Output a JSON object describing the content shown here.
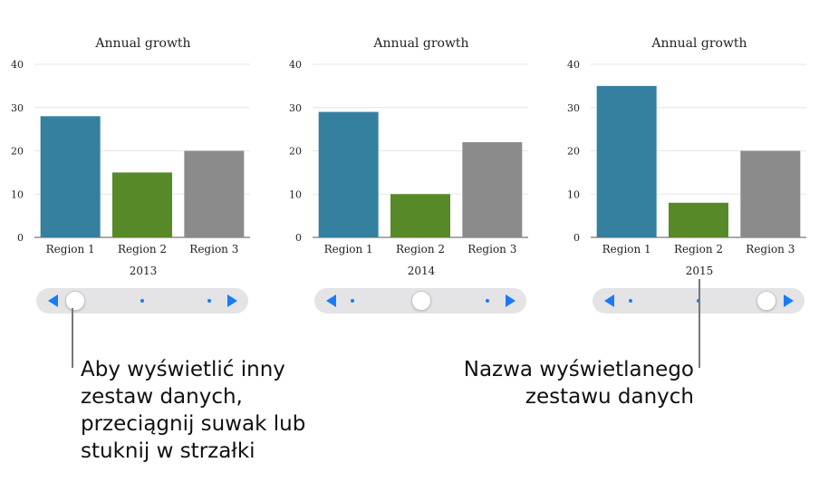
{
  "chart_data": [
    {
      "type": "bar",
      "title": "Annual growth",
      "set_name": "2013",
      "categories": [
        "Region 1",
        "Region 2",
        "Region 3"
      ],
      "values": [
        28,
        15,
        20
      ],
      "colors": [
        "#36809f",
        "#588929",
        "#8b8b8b"
      ],
      "yticks": [
        "0",
        "10",
        "20",
        "30",
        "40"
      ],
      "ylim": [
        0,
        40
      ],
      "grid": true
    },
    {
      "type": "bar",
      "title": "Annual growth",
      "set_name": "2014",
      "categories": [
        "Region 1",
        "Region 2",
        "Region 3"
      ],
      "values": [
        29,
        10,
        22
      ],
      "colors": [
        "#36809f",
        "#588929",
        "#8b8b8b"
      ],
      "yticks": [
        "0",
        "10",
        "20",
        "30",
        "40"
      ],
      "ylim": [
        0,
        40
      ],
      "grid": true
    },
    {
      "type": "bar",
      "title": "Annual growth",
      "set_name": "2015",
      "categories": [
        "Region 1",
        "Region 2",
        "Region 3"
      ],
      "values": [
        35,
        8,
        20
      ],
      "colors": [
        "#36809f",
        "#588929",
        "#8b8b8b"
      ],
      "yticks": [
        "0",
        "10",
        "20",
        "30",
        "40"
      ],
      "ylim": [
        0,
        40
      ],
      "grid": true
    }
  ],
  "sliders": [
    {
      "dataset_count": 3,
      "selected_index": 0
    },
    {
      "dataset_count": 3,
      "selected_index": 1
    },
    {
      "dataset_count": 3,
      "selected_index": 2
    }
  ],
  "callouts": {
    "left_text": "Aby wyświetlić inny zestaw danych, przeciągnij suwak lub stuknij w strzałki",
    "right_text": "Nazwa wyświetlanego zestawu danych"
  },
  "colors": {
    "accent": "#1a7cf5",
    "slider_track": "#e4e4e6"
  }
}
